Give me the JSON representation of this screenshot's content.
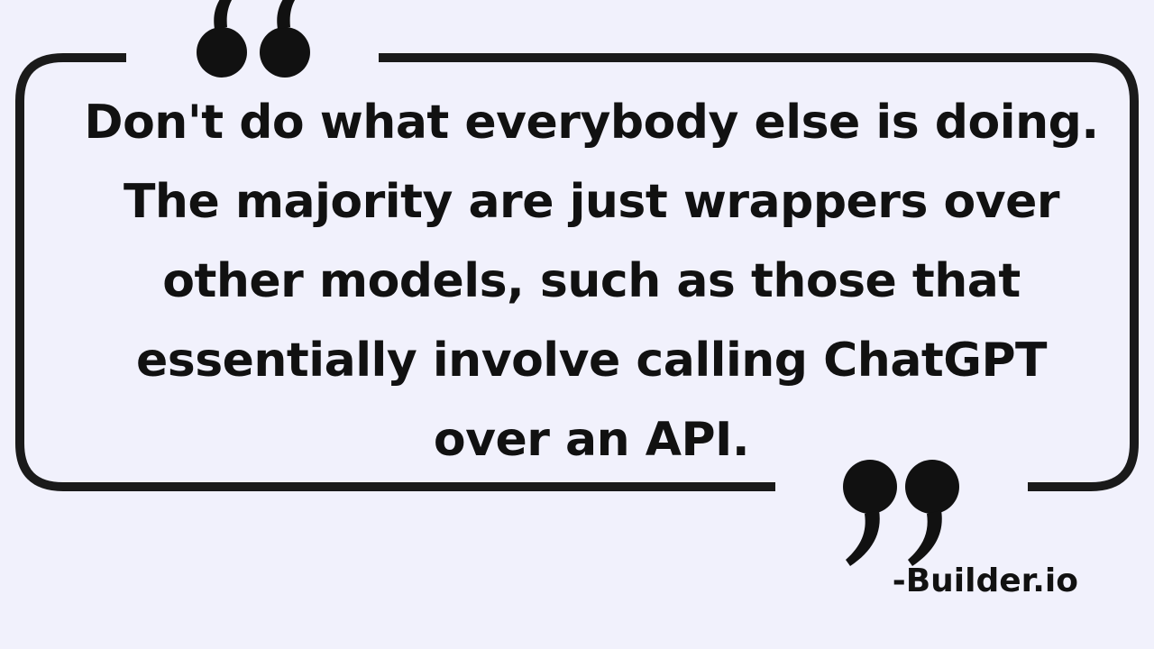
{
  "quote": {
    "lines": [
      "Don't do what everybody else is doing.",
      "The majority are just wrappers over",
      "other models, such as those that",
      "essentially involve calling ChatGPT",
      "over an API."
    ]
  },
  "attribution": "-Builder.io",
  "icons": {
    "open": "open-quote-icon",
    "close": "close-quote-icon"
  },
  "colors": {
    "background": "#f1f1fc",
    "ink": "#111111"
  }
}
